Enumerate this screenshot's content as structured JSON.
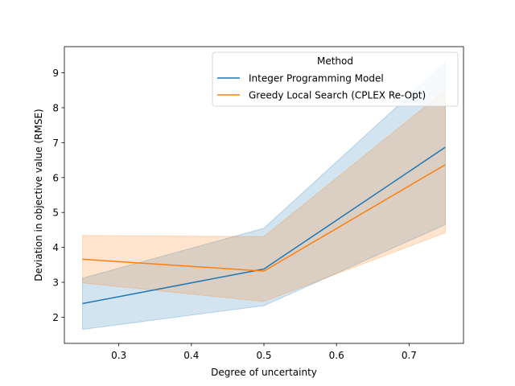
{
  "chart_data": {
    "type": "line",
    "title": "",
    "xlabel": "Degree of uncertainty",
    "ylabel": "Deviation in objective value (RMSE)",
    "xlim": [
      0.225,
      0.775
    ],
    "ylim": [
      1.25,
      9.75
    ],
    "xticks": [
      0.3,
      0.4,
      0.5,
      0.6,
      0.7
    ],
    "xtick_labels": [
      "0.3",
      "0.4",
      "0.5",
      "0.6",
      "0.7"
    ],
    "yticks": [
      2,
      3,
      4,
      5,
      6,
      7,
      8,
      9
    ],
    "ytick_labels": [
      "2",
      "3",
      "4",
      "5",
      "6",
      "7",
      "8",
      "9"
    ],
    "grid": false,
    "legend": {
      "title": "Method",
      "placement": "top-right"
    },
    "x": [
      0.25,
      0.5,
      0.75
    ],
    "series": [
      {
        "name": "Integer Programming Model",
        "color": "#1f77b4",
        "values": [
          2.39,
          3.38,
          6.87
        ],
        "ci_lower": [
          1.65,
          2.33,
          4.65
        ],
        "ci_upper": [
          3.12,
          4.55,
          9.3
        ]
      },
      {
        "name": "Greedy Local Search (CPLEX Re-Opt)",
        "color": "#ff7f0e",
        "values": [
          3.66,
          3.32,
          6.37
        ],
        "ci_lower": [
          2.98,
          2.45,
          4.42
        ],
        "ci_upper": [
          4.34,
          4.31,
          8.5
        ]
      }
    ]
  }
}
